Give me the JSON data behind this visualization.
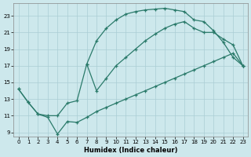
{
  "xlabel": "Humidex (Indice chaleur)",
  "bg_color": "#cde8ec",
  "grid_color": "#aacdd4",
  "line_color": "#2a7a6a",
  "xlim": [
    -0.5,
    23.5
  ],
  "ylim": [
    8.5,
    24.5
  ],
  "xticks": [
    0,
    1,
    2,
    3,
    4,
    5,
    6,
    7,
    8,
    9,
    10,
    11,
    12,
    13,
    14,
    15,
    16,
    17,
    18,
    19,
    20,
    21,
    22,
    23
  ],
  "yticks": [
    9,
    11,
    13,
    15,
    17,
    19,
    21,
    23
  ],
  "curve_top_x": [
    7,
    8,
    9,
    10,
    11,
    12,
    13,
    14,
    15,
    16,
    17,
    18,
    19,
    20,
    21,
    22,
    23
  ],
  "curve_top_y": [
    17.2,
    20.0,
    21.5,
    22.5,
    23.2,
    23.5,
    23.7,
    23.8,
    23.9,
    23.7,
    23.5,
    22.5,
    22.3,
    21.2,
    19.8,
    18.0,
    17.0
  ],
  "curve_mid_x": [
    0,
    1,
    2,
    3,
    4,
    5,
    6,
    7,
    8,
    9,
    10,
    11,
    12,
    13,
    14,
    15,
    16,
    17,
    18,
    19,
    20,
    21,
    22,
    23
  ],
  "curve_mid_y": [
    14.2,
    12.6,
    11.2,
    11.0,
    11.0,
    12.5,
    12.8,
    17.2,
    14.0,
    15.5,
    17.0,
    18.0,
    19.0,
    20.0,
    20.8,
    21.5,
    22.0,
    22.3,
    21.5,
    21.0,
    21.0,
    20.2,
    19.5,
    17.0
  ],
  "curve_bot_x": [
    0,
    1,
    2,
    3,
    4,
    5,
    6,
    7,
    8,
    9,
    10,
    11,
    12,
    13,
    14,
    15,
    16,
    17,
    18,
    19,
    20,
    21,
    22,
    23
  ],
  "curve_bot_y": [
    14.2,
    12.6,
    11.2,
    10.8,
    8.8,
    10.3,
    10.2,
    10.8,
    11.5,
    12.0,
    12.5,
    13.0,
    13.5,
    14.0,
    14.5,
    15.0,
    15.5,
    16.0,
    16.5,
    17.0,
    17.5,
    18.0,
    18.5,
    17.0
  ]
}
